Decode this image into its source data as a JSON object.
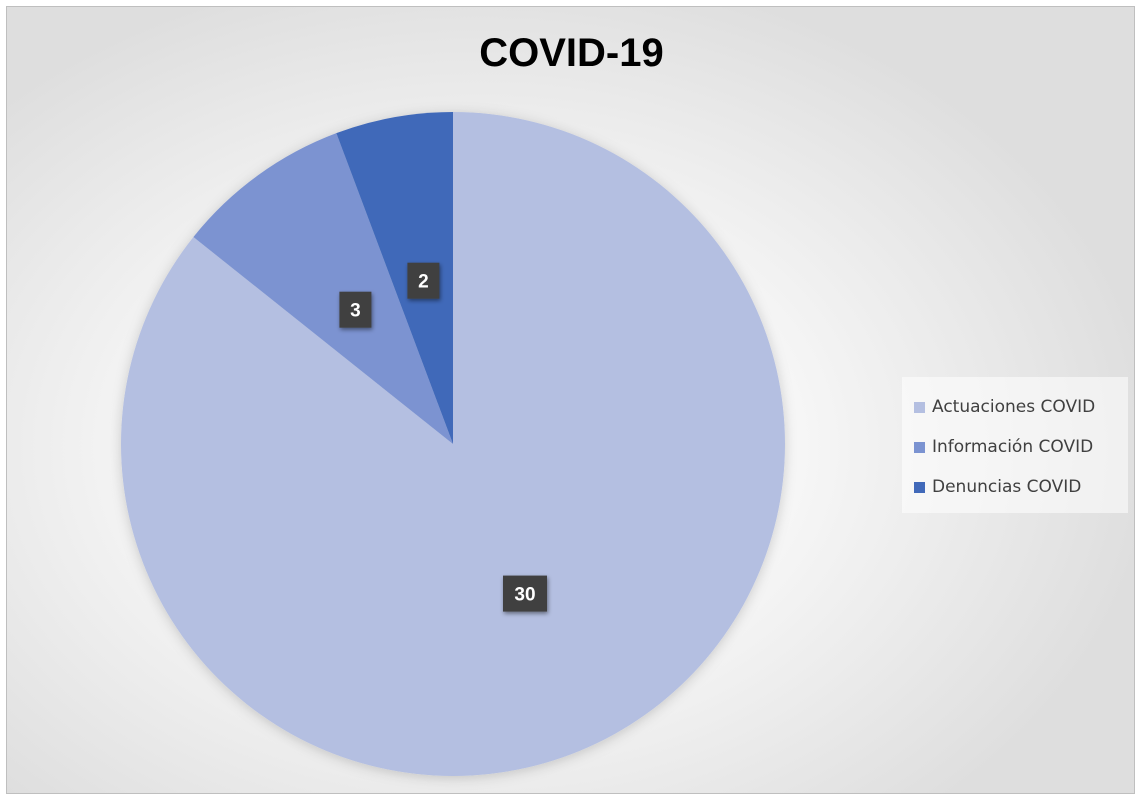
{
  "chart_data": {
    "type": "pie",
    "title": "COVID-19",
    "categories": [
      "Actuaciones COVID",
      "Información COVID",
      "Denuncias COVID"
    ],
    "values": [
      30,
      3,
      2
    ],
    "colors": [
      "#b4bfe1",
      "#7b93d1",
      "#4169b9"
    ],
    "start_angle_deg": 0,
    "direction": "clockwise",
    "data_labels": [
      "30",
      "3",
      "2"
    ],
    "legend_position": "right"
  }
}
